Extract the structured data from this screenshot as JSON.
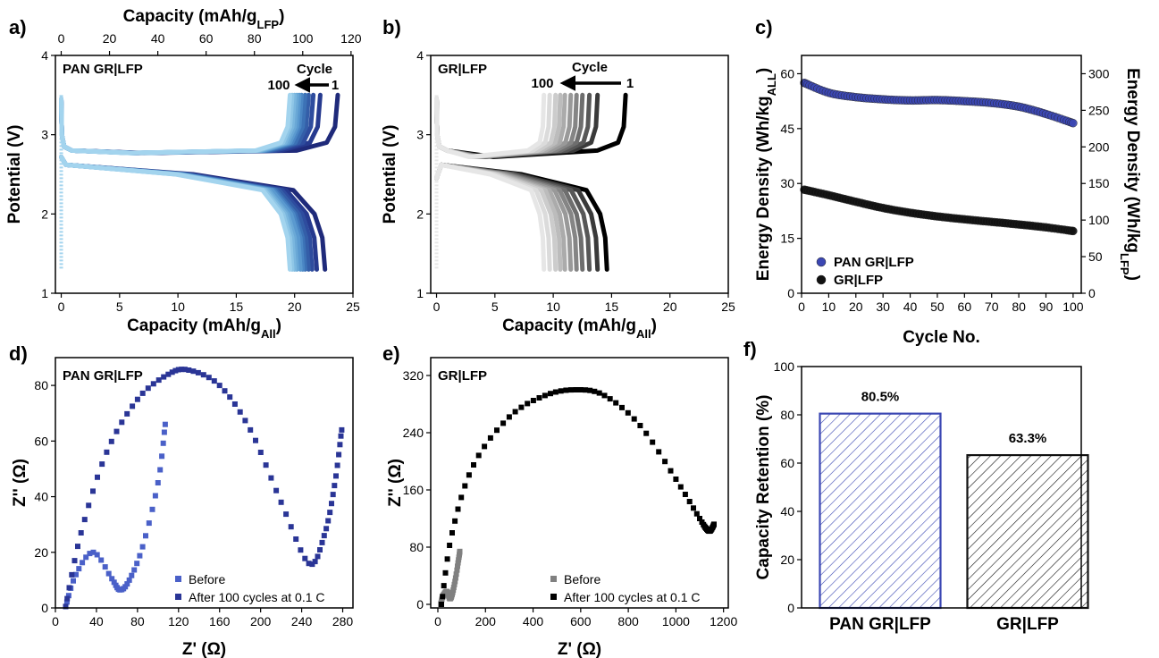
{
  "panels": {
    "a": {
      "letter": "a)"
    },
    "b": {
      "letter": "b)"
    },
    "c": {
      "letter": "c)"
    },
    "d": {
      "letter": "d)"
    },
    "e": {
      "letter": "e)"
    },
    "f": {
      "letter": "f)"
    }
  },
  "colors": {
    "pan_blue": "#3b47b3",
    "blue_gradient": [
      "#1f2a7a",
      "#263a8f",
      "#2e4c9e",
      "#345ea8",
      "#3c72b6",
      "#4a86c4",
      "#5a99cf",
      "#6aa8d6",
      "#7ab6de",
      "#8fc6e6",
      "#a3d4ee"
    ],
    "gray_gradient": [
      "#000000",
      "#3a3a3a",
      "#575757",
      "#6e6e6e",
      "#858585",
      "#999999",
      "#ababab",
      "#bcbcbc",
      "#cccccc",
      "#dbdbdb",
      "#e6e6e6"
    ],
    "gr_black": "#111111"
  },
  "chart_data": [
    {
      "id": "a",
      "type": "line",
      "title": "PAN GR|LFP",
      "xlabel": "Capacity (mAh/g",
      "xlabel_sub": "All",
      "xlabel_end": ")",
      "top_xlabel": "Capacity (mAh/g",
      "top_xlabel_sub": "LFP",
      "top_xlabel_end": ")",
      "ylabel": "Potential (V)",
      "xlim": [
        -0.5,
        25
      ],
      "ylim": [
        1,
        4
      ],
      "xticks": [
        0,
        5,
        10,
        15,
        20,
        25
      ],
      "yticks": [
        1,
        2,
        3,
        4
      ],
      "top_xticks": [
        0,
        20,
        40,
        60,
        80,
        100,
        120
      ],
      "top_xlim": [
        -2.4,
        120.8
      ],
      "annotation": {
        "label": "Cycle",
        "start": "100",
        "end": "1"
      },
      "curves": {
        "count": 11,
        "charge_caps": [
          23.7,
          22.2,
          21.6,
          21.2,
          20.9,
          20.6,
          20.4,
          20.2,
          20.0,
          19.8,
          19.6
        ],
        "discharge_caps": [
          22.6,
          21.9,
          21.5,
          21.2,
          20.9,
          20.7,
          20.5,
          20.2,
          20.0,
          19.8,
          19.6
        ],
        "v_top": 3.5,
        "v_bottom": 1.3
      }
    },
    {
      "id": "b",
      "type": "line",
      "title": "GR|LFP",
      "xlabel": "Capacity (mAh/g",
      "xlabel_sub": "All",
      "xlabel_end": ")",
      "ylabel": "Potential (V)",
      "xlim": [
        -0.5,
        25
      ],
      "ylim": [
        1,
        4
      ],
      "xticks": [
        0,
        5,
        10,
        15,
        20,
        25
      ],
      "yticks": [
        1,
        2,
        3,
        4
      ],
      "annotation": {
        "label": "Cycle",
        "start": "100",
        "end": "1"
      },
      "curves": {
        "count": 11,
        "charge_caps": [
          16.2,
          13.8,
          13.1,
          12.5,
          12.0,
          11.5,
          11.0,
          10.6,
          10.2,
          9.7,
          9.2
        ],
        "discharge_caps": [
          14.6,
          13.8,
          13.1,
          12.5,
          12.0,
          11.5,
          11.0,
          10.6,
          10.2,
          9.7,
          9.2
        ],
        "v_top": 3.5,
        "v_bottom": 1.3
      }
    },
    {
      "id": "c",
      "type": "scatter",
      "xlabel": "Cycle No.",
      "ylabel": "Energy Density (Wh/kg",
      "ylabel_sub": "ALL",
      "ylabel_end": ")",
      "y2label": "Energy Density (Wh/kg",
      "y2label_sub": "LFP",
      "y2label_end": ")",
      "xlim": [
        0,
        103
      ],
      "ylim": [
        0,
        65
      ],
      "y2lim": [
        0,
        325
      ],
      "xticks": [
        0,
        10,
        20,
        30,
        40,
        50,
        60,
        70,
        80,
        90,
        100
      ],
      "yticks": [
        0,
        15,
        30,
        45,
        60
      ],
      "y2ticks": [
        0,
        50,
        100,
        150,
        200,
        250,
        300
      ],
      "legend_position": "bottom-left",
      "series": [
        {
          "name": "PAN GR|LFP",
          "color": "#3b47b3",
          "x": [
            1,
            10,
            20,
            30,
            40,
            50,
            60,
            70,
            80,
            90,
            100
          ],
          "y": [
            57.5,
            54.8,
            53.6,
            53.0,
            52.7,
            52.8,
            52.5,
            52.0,
            51.0,
            49.0,
            46.5
          ]
        },
        {
          "name": "GR|LFP",
          "color": "#111111",
          "x": [
            1,
            10,
            20,
            30,
            40,
            50,
            60,
            70,
            80,
            90,
            100
          ],
          "y": [
            28.3,
            26.8,
            25.0,
            23.3,
            22.0,
            21.0,
            20.2,
            19.5,
            18.8,
            18.0,
            17.0
          ]
        }
      ]
    },
    {
      "id": "d",
      "type": "scatter",
      "title": "PAN GR|LFP",
      "xlabel": "Z' (Ω)",
      "ylabel": "Z'' (Ω)",
      "xlim": [
        0,
        290
      ],
      "ylim": [
        0,
        90
      ],
      "xticks": [
        0,
        40,
        80,
        120,
        160,
        200,
        240,
        280
      ],
      "yticks": [
        0,
        20,
        40,
        60,
        80
      ],
      "legend_position": "bottom-right",
      "series": [
        {
          "name": "Before",
          "color": "#4a60c8",
          "x": [
            10,
            20,
            37,
            55,
            63,
            72,
            85,
            100,
            107
          ],
          "y": [
            0.5,
            12,
            20,
            10.5,
            6.5,
            10,
            22,
            45,
            66
          ]
        },
        {
          "name": "After 100 cycles at 0.1 C",
          "color": "#2a3596",
          "x": [
            10,
            25,
            50,
            80,
            110,
            130,
            160,
            190,
            220,
            247,
            262,
            272,
            279
          ],
          "y": [
            0.5,
            27,
            56,
            75,
            84,
            85.5,
            80,
            64,
            38,
            16,
            26,
            44,
            64
          ]
        }
      ]
    },
    {
      "id": "e",
      "type": "scatter",
      "title": "GR|LFP",
      "xlabel": "Z' (Ω)",
      "ylabel": "Z'' (Ω)",
      "xlim": [
        -30,
        1220
      ],
      "ylim": [
        -5,
        345
      ],
      "xticks": [
        0,
        200,
        400,
        600,
        800,
        1000,
        1200
      ],
      "yticks": [
        0,
        80,
        160,
        240,
        320
      ],
      "legend_position": "bottom-right",
      "series": [
        {
          "name": "Before",
          "color": "#808080",
          "x": [
            12,
            22,
            38,
            50,
            60,
            72,
            85,
            92
          ],
          "y": [
            0,
            12,
            18,
            8,
            14,
            32,
            58,
            74
          ]
        },
        {
          "name": "After 100 cycles at 0.1 C",
          "color": "#000000",
          "x": [
            15,
            60,
            150,
            300,
            450,
            580,
            700,
            850,
            1000,
            1100,
            1130,
            1145,
            1160
          ],
          "y": [
            0,
            100,
            195,
            262,
            292,
            300,
            292,
            250,
            175,
            120,
            105,
            103,
            112
          ]
        }
      ]
    },
    {
      "id": "f",
      "type": "bar",
      "ylabel": "Capacity Retention (%)",
      "ylim": [
        0,
        100
      ],
      "yticks": [
        0,
        20,
        40,
        60,
        80,
        100
      ],
      "categories": [
        "PAN GR|LFP",
        "GR|LFP"
      ],
      "values": [
        80.5,
        63.3
      ],
      "data_labels": [
        "80.5%",
        "63.3%"
      ],
      "bar_colors": [
        "#3b47b3",
        "#111111"
      ]
    }
  ]
}
